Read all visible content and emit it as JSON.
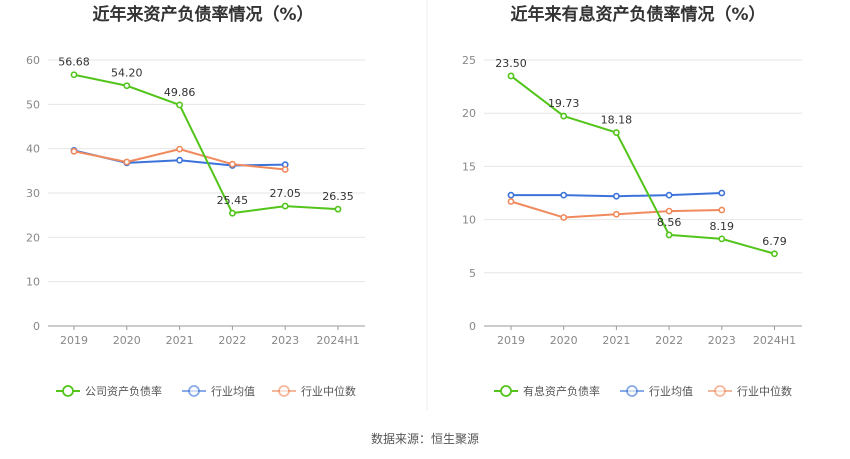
{
  "source_text": "数据来源：恒生聚源",
  "chart_data": [
    {
      "type": "line",
      "title": "近年来资产负债率情况（%）",
      "categories": [
        "2019",
        "2020",
        "2021",
        "2022",
        "2023",
        "2024H1"
      ],
      "ylim": [
        0,
        60
      ],
      "yticks": [
        0,
        10,
        20,
        30,
        40,
        50,
        60
      ],
      "grid": true,
      "legend_position": "bottom",
      "series": [
        {
          "name": "公司资产负债率",
          "color": "#52c41a",
          "values": [
            56.68,
            54.2,
            49.86,
            25.45,
            27.05,
            26.35
          ],
          "labels": [
            "56.68",
            "54.20",
            "49.86",
            "25.45",
            "27.05",
            "26.35"
          ]
        },
        {
          "name": "行业均值",
          "color": "#3b73db",
          "values": [
            39.6,
            36.8,
            37.4,
            36.2,
            36.4,
            null
          ]
        },
        {
          "name": "行业中位数",
          "color": "#f08a5d",
          "values": [
            39.4,
            37.0,
            39.9,
            36.5,
            35.3,
            null
          ]
        }
      ]
    },
    {
      "type": "line",
      "title": "近年来有息资产负债率情况（%）",
      "categories": [
        "2019",
        "2020",
        "2021",
        "2022",
        "2023",
        "2024H1"
      ],
      "ylim": [
        0,
        25
      ],
      "yticks": [
        0,
        5,
        10,
        15,
        20,
        25
      ],
      "grid": true,
      "legend_position": "bottom",
      "series": [
        {
          "name": "有息资产负债率",
          "color": "#52c41a",
          "values": [
            23.5,
            19.73,
            18.18,
            8.56,
            8.19,
            6.79
          ],
          "labels": [
            "23.50",
            "19.73",
            "18.18",
            "8.56",
            "8.19",
            "6.79"
          ]
        },
        {
          "name": "行业均值",
          "color": "#3b73db",
          "values": [
            12.3,
            12.3,
            12.2,
            12.3,
            12.5,
            null
          ]
        },
        {
          "name": "行业中位数",
          "color": "#f08a5d",
          "values": [
            11.7,
            10.2,
            10.5,
            10.8,
            10.9,
            null
          ]
        }
      ]
    }
  ]
}
